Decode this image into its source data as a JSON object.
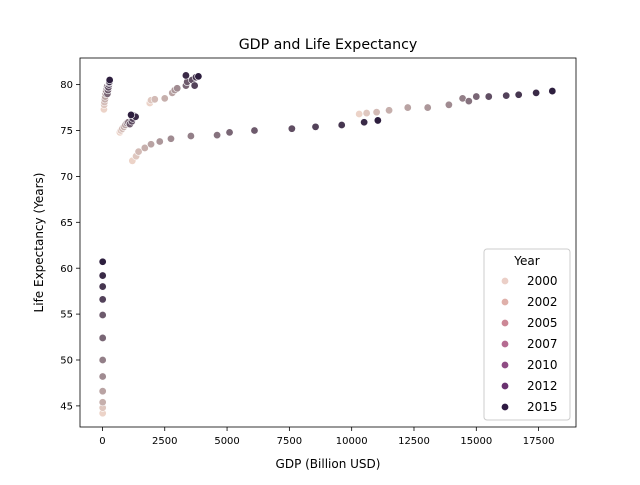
{
  "chart_data": {
    "type": "scatter",
    "title": "GDP and Life Expectancy",
    "xlabel": "GDP (Billion USD)",
    "ylabel": "Life Expectancy (Years)",
    "xlim": [
      -900,
      19000
    ],
    "ylim": [
      42.7,
      82.9
    ],
    "xticks": [
      0,
      2500,
      5000,
      7500,
      10000,
      12500,
      15000,
      17500
    ],
    "xtick_labels": [
      "0",
      "2500",
      "5000",
      "7500",
      "10000",
      "12500",
      "15000",
      "17500"
    ],
    "yticks": [
      45,
      50,
      55,
      60,
      65,
      70,
      75,
      80
    ],
    "ytick_labels": [
      "45",
      "50",
      "55",
      "60",
      "65",
      "70",
      "75",
      "80"
    ],
    "grid": false,
    "legend": {
      "title": "Year",
      "placement": "lower-right",
      "entries": [
        {
          "label": "2000",
          "color": "#ebcfc7"
        },
        {
          "label": "2002",
          "color": "#dfb0aa"
        },
        {
          "label": "2005",
          "color": "#cc8796"
        },
        {
          "label": "2007",
          "color": "#b56b91"
        },
        {
          "label": "2010",
          "color": "#8f4c84"
        },
        {
          "label": "2012",
          "color": "#6a3270"
        },
        {
          "label": "2015",
          "color": "#2e1a42"
        }
      ]
    },
    "hue_scale": {
      "min": 2000,
      "max": 2015,
      "low_color": "#ecd3c8",
      "high_color": "#2d1e3e"
    },
    "series": [
      {
        "points": [
          {
            "x": 10,
            "y": 44.2,
            "year": 2000
          },
          {
            "x": 10,
            "y": 44.8,
            "year": 2001
          },
          {
            "x": 10,
            "y": 45.4,
            "year": 2003
          },
          {
            "x": 10,
            "y": 46.6,
            "year": 2004
          },
          {
            "x": 10,
            "y": 48.2,
            "year": 2006
          },
          {
            "x": 10,
            "y": 50.0,
            "year": 2007
          },
          {
            "x": 10,
            "y": 52.4,
            "year": 2009
          },
          {
            "x": 10,
            "y": 54.9,
            "year": 2010
          },
          {
            "x": 10,
            "y": 56.6,
            "year": 2012
          },
          {
            "x": 10,
            "y": 58.0,
            "year": 2013
          },
          {
            "x": 10,
            "y": 59.2,
            "year": 2014
          },
          {
            "x": 10,
            "y": 60.7,
            "year": 2015
          },
          {
            "x": 60,
            "y": 77.3,
            "year": 2000
          },
          {
            "x": 70,
            "y": 77.8,
            "year": 2001
          },
          {
            "x": 80,
            "y": 78.1,
            "year": 2002
          },
          {
            "x": 100,
            "y": 78.4,
            "year": 2003
          },
          {
            "x": 110,
            "y": 78.7,
            "year": 2004
          },
          {
            "x": 130,
            "y": 79.0,
            "year": 2005
          },
          {
            "x": 150,
            "y": 79.3,
            "year": 2006
          },
          {
            "x": 170,
            "y": 79.6,
            "year": 2007
          },
          {
            "x": 190,
            "y": 79.8,
            "year": 2008
          },
          {
            "x": 200,
            "y": 79.0,
            "year": 2009
          },
          {
            "x": 220,
            "y": 79.4,
            "year": 2010
          },
          {
            "x": 240,
            "y": 79.7,
            "year": 2011
          },
          {
            "x": 260,
            "y": 80.0,
            "year": 2012
          },
          {
            "x": 270,
            "y": 80.2,
            "year": 2013
          },
          {
            "x": 280,
            "y": 80.3,
            "year": 2014
          },
          {
            "x": 290,
            "y": 80.5,
            "year": 2015
          },
          {
            "x": 700,
            "y": 74.8,
            "year": 2000
          },
          {
            "x": 740,
            "y": 75.0,
            "year": 2001
          },
          {
            "x": 800,
            "y": 75.2,
            "year": 2002
          },
          {
            "x": 860,
            "y": 75.4,
            "year": 2003
          },
          {
            "x": 920,
            "y": 75.6,
            "year": 2004
          },
          {
            "x": 980,
            "y": 75.8,
            "year": 2006
          },
          {
            "x": 1040,
            "y": 75.9,
            "year": 2008
          },
          {
            "x": 1100,
            "y": 75.7,
            "year": 2010
          },
          {
            "x": 1180,
            "y": 76.0,
            "year": 2011
          },
          {
            "x": 1220,
            "y": 76.3,
            "year": 2012
          },
          {
            "x": 1260,
            "y": 76.6,
            "year": 2013
          },
          {
            "x": 1330,
            "y": 76.5,
            "year": 2014
          },
          {
            "x": 1150,
            "y": 76.7,
            "year": 2015
          },
          {
            "x": 1900,
            "y": 78.0,
            "year": 2000
          },
          {
            "x": 1950,
            "y": 78.3,
            "year": 2001
          },
          {
            "x": 2100,
            "y": 78.4,
            "year": 2002
          },
          {
            "x": 2500,
            "y": 78.5,
            "year": 2003
          },
          {
            "x": 2800,
            "y": 79.1,
            "year": 2004
          },
          {
            "x": 2900,
            "y": 79.4,
            "year": 2005
          },
          {
            "x": 3000,
            "y": 79.6,
            "year": 2006
          },
          {
            "x": 3350,
            "y": 79.9,
            "year": 2009
          },
          {
            "x": 3400,
            "y": 80.3,
            "year": 2010
          },
          {
            "x": 3600,
            "y": 80.5,
            "year": 2011
          },
          {
            "x": 3700,
            "y": 79.9,
            "year": 2012
          },
          {
            "x": 3750,
            "y": 80.8,
            "year": 2013
          },
          {
            "x": 3350,
            "y": 81.0,
            "year": 2014
          },
          {
            "x": 3850,
            "y": 80.9,
            "year": 2015
          },
          {
            "x": 1200,
            "y": 71.7,
            "year": 2000
          },
          {
            "x": 1350,
            "y": 72.2,
            "year": 2001
          },
          {
            "x": 1450,
            "y": 72.7,
            "year": 2002
          },
          {
            "x": 1700,
            "y": 73.1,
            "year": 2003
          },
          {
            "x": 1950,
            "y": 73.5,
            "year": 2004
          },
          {
            "x": 2300,
            "y": 73.8,
            "year": 2005
          },
          {
            "x": 2750,
            "y": 74.1,
            "year": 2006
          },
          {
            "x": 3550,
            "y": 74.4,
            "year": 2007
          },
          {
            "x": 4600,
            "y": 74.5,
            "year": 2008
          },
          {
            "x": 5100,
            "y": 74.8,
            "year": 2009
          },
          {
            "x": 6100,
            "y": 75.0,
            "year": 2010
          },
          {
            "x": 7600,
            "y": 75.2,
            "year": 2011
          },
          {
            "x": 8550,
            "y": 75.4,
            "year": 2012
          },
          {
            "x": 9600,
            "y": 75.6,
            "year": 2013
          },
          {
            "x": 10500,
            "y": 75.9,
            "year": 2014
          },
          {
            "x": 11050,
            "y": 76.1,
            "year": 2015
          },
          {
            "x": 10300,
            "y": 76.8,
            "year": 2000
          },
          {
            "x": 10600,
            "y": 76.9,
            "year": 2001
          },
          {
            "x": 11000,
            "y": 77.0,
            "year": 2002
          },
          {
            "x": 11500,
            "y": 77.2,
            "year": 2003
          },
          {
            "x": 12250,
            "y": 77.5,
            "year": 2004
          },
          {
            "x": 13050,
            "y": 77.5,
            "year": 2005
          },
          {
            "x": 13900,
            "y": 77.8,
            "year": 2006
          },
          {
            "x": 14450,
            "y": 78.5,
            "year": 2007
          },
          {
            "x": 14700,
            "y": 78.2,
            "year": 2008
          },
          {
            "x": 15000,
            "y": 78.7,
            "year": 2009
          },
          {
            "x": 15500,
            "y": 78.7,
            "year": 2011
          },
          {
            "x": 16200,
            "y": 78.8,
            "year": 2012
          },
          {
            "x": 16700,
            "y": 78.9,
            "year": 2013
          },
          {
            "x": 17400,
            "y": 79.1,
            "year": 2014
          },
          {
            "x": 18050,
            "y": 79.3,
            "year": 2015
          }
        ]
      }
    ]
  }
}
